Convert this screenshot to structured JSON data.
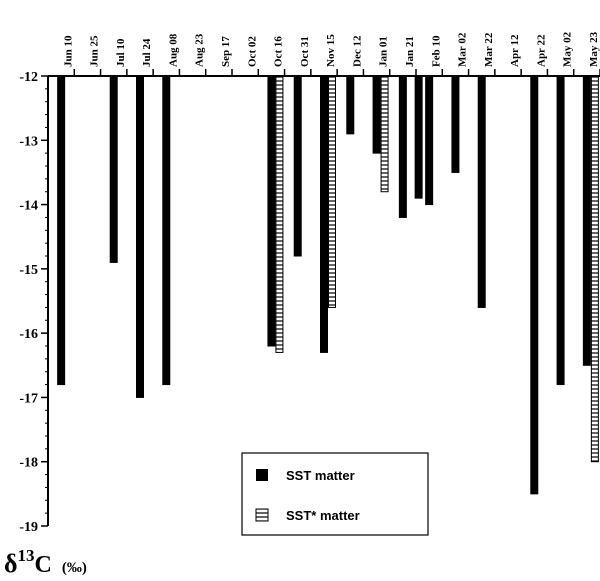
{
  "chart_data": {
    "type": "bar",
    "orientation": "hanging-from-top",
    "x_tick_labels": [
      "Jun 10",
      "Jun 25",
      "Jul 10",
      "Jul 24",
      "Aug 08",
      "Aug 23",
      "Sep 17",
      "Oct 02",
      "Oct 16",
      "Oct 31",
      "Nov 15",
      "Dec 12",
      "Jan 01",
      "Jan 21",
      "Feb 10",
      "Mar 02",
      "Mar 22",
      "Apr 12",
      "Apr 22",
      "May 02",
      "May 23"
    ],
    "ylim": [
      -19,
      -12
    ],
    "y_ticks": [
      -12,
      -13,
      -14,
      -15,
      -16,
      -17,
      -18,
      -19
    ],
    "y_axis_title": {
      "main": "δ",
      "sup": "13",
      "letter": "C",
      "unit": "(‰)"
    },
    "legend_position": "lower-center",
    "grid": false,
    "series": [
      {
        "name": "SST matter",
        "style": "solid",
        "color": "#000000",
        "points": [
          {
            "x": "Jun 10",
            "y": -16.8
          },
          {
            "x": "Jul 10",
            "y": -14.9
          },
          {
            "x": "Jul 24",
            "y": -17.0
          },
          {
            "x": "Aug 08",
            "y": -16.8
          },
          {
            "x": "Oct 16",
            "y": -16.2
          },
          {
            "x": "Oct 31",
            "y": -14.8
          },
          {
            "x": "Nov 15",
            "y": -16.3
          },
          {
            "x": "Dec 12",
            "y": -12.9
          },
          {
            "x": "Jan 01",
            "y": -13.2
          },
          {
            "x": "Jan 21",
            "y": -14.2
          },
          {
            "x": "Jan 21",
            "y": -13.9
          },
          {
            "x": "Feb 10",
            "y": -14.0
          },
          {
            "x": "Mar 02",
            "y": -13.5
          },
          {
            "x": "Mar 22",
            "y": -15.6
          },
          {
            "x": "Apr 22",
            "y": -18.5
          },
          {
            "x": "May 02",
            "y": -16.8
          },
          {
            "x": "May 23",
            "y": -16.5
          }
        ]
      },
      {
        "name": "SST* matter",
        "style": "hatched",
        "color": "#000000",
        "points": [
          {
            "x": "Oct 16",
            "y": -16.3
          },
          {
            "x": "Nov 15",
            "y": -15.6
          },
          {
            "x": "Jan 01",
            "y": -13.8
          },
          {
            "x": "May 23",
            "y": -18.0
          }
        ]
      }
    ]
  }
}
